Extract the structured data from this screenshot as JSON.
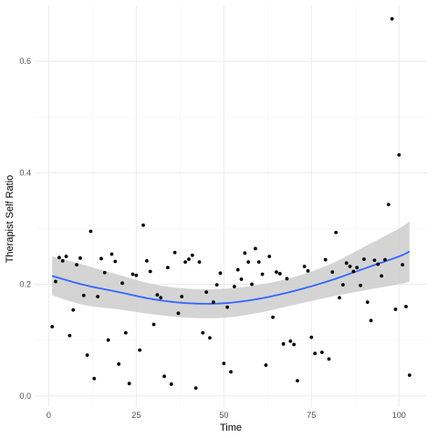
{
  "chart_data": {
    "type": "scatter",
    "xlabel": "Time",
    "ylabel": "Therapist Self Ratio",
    "xlim": [
      -4,
      108
    ],
    "ylim": [
      -0.02,
      0.7
    ],
    "x_ticks": [
      0,
      25,
      50,
      75,
      100
    ],
    "y_ticks": [
      0.0,
      0.2,
      0.4,
      0.6
    ],
    "x_tick_labels": [
      "0",
      "25",
      "50",
      "75",
      "100"
    ],
    "y_tick_labels": [
      "0.0",
      "0.2",
      "0.4",
      "0.6"
    ],
    "grid": true,
    "points": [
      {
        "x": 1,
        "y": 0.124
      },
      {
        "x": 2,
        "y": 0.205
      },
      {
        "x": 3,
        "y": 0.248
      },
      {
        "x": 4,
        "y": 0.242
      },
      {
        "x": 5,
        "y": 0.25
      },
      {
        "x": 6,
        "y": 0.108
      },
      {
        "x": 7,
        "y": 0.154
      },
      {
        "x": 8,
        "y": 0.235
      },
      {
        "x": 9,
        "y": 0.247
      },
      {
        "x": 10,
        "y": 0.18
      },
      {
        "x": 11,
        "y": 0.073
      },
      {
        "x": 12,
        "y": 0.295
      },
      {
        "x": 13,
        "y": 0.031
      },
      {
        "x": 14,
        "y": 0.178
      },
      {
        "x": 15,
        "y": 0.246
      },
      {
        "x": 16,
        "y": 0.221
      },
      {
        "x": 17,
        "y": 0.1
      },
      {
        "x": 18,
        "y": 0.254
      },
      {
        "x": 19,
        "y": 0.241
      },
      {
        "x": 20,
        "y": 0.057
      },
      {
        "x": 21,
        "y": 0.202
      },
      {
        "x": 22,
        "y": 0.113
      },
      {
        "x": 23,
        "y": 0.022
      },
      {
        "x": 24,
        "y": 0.218
      },
      {
        "x": 25,
        "y": 0.216
      },
      {
        "x": 26,
        "y": 0.082
      },
      {
        "x": 27,
        "y": 0.306
      },
      {
        "x": 28,
        "y": 0.242
      },
      {
        "x": 29,
        "y": 0.223
      },
      {
        "x": 30,
        "y": 0.128
      },
      {
        "x": 31,
        "y": 0.181
      },
      {
        "x": 32,
        "y": 0.176
      },
      {
        "x": 33,
        "y": 0.035
      },
      {
        "x": 34,
        "y": 0.23
      },
      {
        "x": 35,
        "y": 0.021
      },
      {
        "x": 36,
        "y": 0.257
      },
      {
        "x": 37,
        "y": 0.148
      },
      {
        "x": 38,
        "y": 0.178
      },
      {
        "x": 39,
        "y": 0.24
      },
      {
        "x": 40,
        "y": 0.245
      },
      {
        "x": 41,
        "y": 0.252
      },
      {
        "x": 42,
        "y": 0.014
      },
      {
        "x": 43,
        "y": 0.24
      },
      {
        "x": 44,
        "y": 0.113
      },
      {
        "x": 45,
        "y": 0.186
      },
      {
        "x": 46,
        "y": 0.104
      },
      {
        "x": 47,
        "y": 0.168
      },
      {
        "x": 48,
        "y": 0.199
      },
      {
        "x": 49,
        "y": 0.22
      },
      {
        "x": 50,
        "y": 0.058
      },
      {
        "x": 51,
        "y": 0.159
      },
      {
        "x": 52,
        "y": 0.043
      },
      {
        "x": 53,
        "y": 0.196
      },
      {
        "x": 54,
        "y": 0.226
      },
      {
        "x": 55,
        "y": 0.209
      },
      {
        "x": 56,
        "y": 0.256
      },
      {
        "x": 57,
        "y": 0.24
      },
      {
        "x": 58,
        "y": 0.2
      },
      {
        "x": 59,
        "y": 0.264
      },
      {
        "x": 60,
        "y": 0.24
      },
      {
        "x": 61,
        "y": 0.218
      },
      {
        "x": 62,
        "y": 0.055
      },
      {
        "x": 63,
        "y": 0.25
      },
      {
        "x": 64,
        "y": 0.141
      },
      {
        "x": 65,
        "y": 0.222
      },
      {
        "x": 66,
        "y": 0.219
      },
      {
        "x": 67,
        "y": 0.093
      },
      {
        "x": 68,
        "y": 0.21
      },
      {
        "x": 69,
        "y": 0.098
      },
      {
        "x": 70,
        "y": 0.092
      },
      {
        "x": 71,
        "y": 0.027
      },
      {
        "x": 73,
        "y": 0.232
      },
      {
        "x": 74,
        "y": 0.224
      },
      {
        "x": 75,
        "y": 0.105
      },
      {
        "x": 76,
        "y": 0.076
      },
      {
        "x": 78,
        "y": 0.078
      },
      {
        "x": 79,
        "y": 0.244
      },
      {
        "x": 80,
        "y": 0.066
      },
      {
        "x": 81,
        "y": 0.222
      },
      {
        "x": 82,
        "y": 0.293
      },
      {
        "x": 83,
        "y": 0.176
      },
      {
        "x": 84,
        "y": 0.199
      },
      {
        "x": 85,
        "y": 0.238
      },
      {
        "x": 86,
        "y": 0.232
      },
      {
        "x": 87,
        "y": 0.223
      },
      {
        "x": 88,
        "y": 0.23
      },
      {
        "x": 89,
        "y": 0.198
      },
      {
        "x": 90,
        "y": 0.245
      },
      {
        "x": 91,
        "y": 0.168
      },
      {
        "x": 92,
        "y": 0.135
      },
      {
        "x": 93,
        "y": 0.243
      },
      {
        "x": 94,
        "y": 0.236
      },
      {
        "x": 95,
        "y": 0.215
      },
      {
        "x": 96,
        "y": 0.244
      },
      {
        "x": 97,
        "y": 0.343
      },
      {
        "x": 98,
        "y": 0.676
      },
      {
        "x": 99,
        "y": 0.155
      },
      {
        "x": 100,
        "y": 0.432
      },
      {
        "x": 101,
        "y": 0.235
      },
      {
        "x": 102,
        "y": 0.16
      },
      {
        "x": 103,
        "y": 0.037
      }
    ],
    "smooth": {
      "method": "loess",
      "color": "#3366ff",
      "band_color": "#cccccc",
      "x": [
        1,
        10,
        20,
        30,
        40,
        50,
        60,
        70,
        80,
        90,
        100,
        103
      ],
      "y": [
        0.215,
        0.199,
        0.186,
        0.173,
        0.166,
        0.166,
        0.174,
        0.188,
        0.206,
        0.228,
        0.25,
        0.259
      ],
      "lower": [
        0.18,
        0.163,
        0.155,
        0.146,
        0.14,
        0.14,
        0.149,
        0.163,
        0.177,
        0.189,
        0.2,
        0.205
      ],
      "upper": [
        0.25,
        0.235,
        0.217,
        0.2,
        0.192,
        0.192,
        0.199,
        0.213,
        0.235,
        0.267,
        0.3,
        0.313
      ]
    },
    "colors": {
      "panel_background": "#ffffff",
      "grid": "#ebebeb",
      "point": "#000000"
    }
  }
}
